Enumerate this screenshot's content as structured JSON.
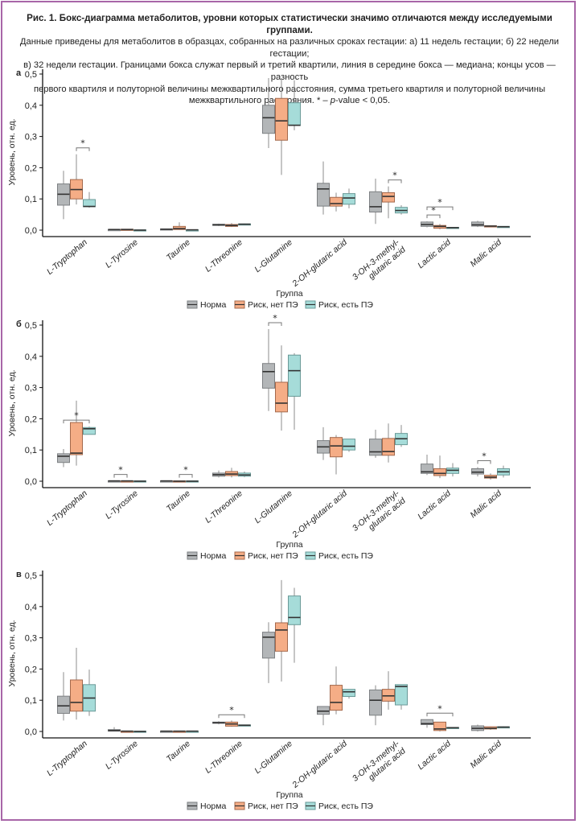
{
  "caption": {
    "title": "Рис. 1. Бокс-диаграмма метаболитов, уровни которых статистически значимо отличаются между исследуемыми группами.",
    "line1": "Данные приведены для метаболитов в образцах, собранных на различных сроках гестации: а) 11 недель гестации; б) 22 недели гестации;",
    "line2": "в) 32 недели гестации. Границами бокса служат первый и третий квартили, линия в середине бокса — медиана; концы усов — разность",
    "line3": "первого квартиля и полуторной величины межквартильного расстояния, сумма третьего квартиля и полуторной величины",
    "line4_pre": "межквартильного расстояния. * – ",
    "line4_italic": "p",
    "line4_post": "-value < 0,05."
  },
  "colors": {
    "Норма": "#b3b6b8",
    "Риск, нет ПЭ": "#f5ad86",
    "Риск, есть ПЭ": "#a6dcd9",
    "frame": "#a866a8"
  },
  "chart_data": [
    {
      "type": "boxplot",
      "panel": "а",
      "ylabel": "Уровень, отн. ед.",
      "xlabel": "Группа",
      "ylim": [
        0,
        0.5
      ],
      "yticks": [
        "0,0",
        "0,1",
        "0,2",
        "0,3",
        "0,4",
        "0,5"
      ],
      "categories": [
        "L-Tryptophan",
        "L-Tyrosine",
        "Taurine",
        "L-Threonine",
        "L-Glutamine",
        "2-OH-glutaric acid",
        "3-OH-3-methyl-\nglutaric acid",
        "Lactic acid",
        "Malic acid"
      ],
      "legend": [
        "Норма",
        "Риск, нет ПЭ",
        "Риск, есть ПЭ"
      ],
      "legend_position": "bottom",
      "series": [
        {
          "name": "Норма",
          "boxes": [
            [
              0.035,
              0.08,
              0.115,
              0.148,
              0.19
            ],
            [
              0.001,
              0.001,
              0.002,
              0.002,
              0.003
            ],
            [
              0.002,
              0.002,
              0.003,
              0.004,
              0.005
            ],
            [
              0.013,
              0.015,
              0.017,
              0.019,
              0.021
            ],
            [
              0.263,
              0.31,
              0.36,
              0.4,
              0.487
            ],
            [
              0.05,
              0.077,
              0.132,
              0.15,
              0.22
            ],
            [
              0.02,
              0.058,
              0.075,
              0.123,
              0.165
            ],
            [
              0.009,
              0.012,
              0.018,
              0.026,
              0.028
            ],
            [
              0.01,
              0.013,
              0.017,
              0.026,
              0.03
            ]
          ]
        },
        {
          "name": "Риск, нет ПЭ",
          "boxes": [
            [
              0.082,
              0.1,
              0.13,
              0.162,
              0.243
            ],
            [
              0.001,
              0.001,
              0.002,
              0.003,
              0.004
            ],
            [
              0.001,
              0.002,
              0.005,
              0.012,
              0.025
            ],
            [
              0.01,
              0.012,
              0.015,
              0.018,
              0.023
            ],
            [
              0.177,
              0.288,
              0.35,
              0.422,
              0.483
            ],
            [
              0.06,
              0.077,
              0.085,
              0.105,
              0.12
            ],
            [
              0.038,
              0.09,
              0.108,
              0.12,
              0.14
            ],
            [
              0.003,
              0.006,
              0.012,
              0.015,
              0.02
            ],
            [
              0.011,
              0.012,
              0.013,
              0.014,
              0.015
            ]
          ]
        },
        {
          "name": "Риск, есть ПЭ",
          "boxes": [
            [
              0.072,
              0.075,
              0.076,
              0.098,
              0.122
            ],
            [
              0.0,
              0.0,
              0.0,
              0.001,
              0.001
            ],
            [
              0.0,
              0.0,
              0.001,
              0.001,
              0.002
            ],
            [
              0.017,
              0.018,
              0.019,
              0.02,
              0.021
            ],
            [
              0.32,
              0.335,
              0.336,
              0.408,
              0.48
            ],
            [
              0.07,
              0.083,
              0.103,
              0.117,
              0.133
            ],
            [
              0.05,
              0.055,
              0.063,
              0.073,
              0.08
            ],
            [
              0.006,
              0.007,
              0.008,
              0.009,
              0.01
            ],
            [
              0.008,
              0.01,
              0.011,
              0.012,
              0.013
            ]
          ]
        }
      ],
      "significance": [
        {
          "category": "L-Tryptophan",
          "groups": [
            "Риск, нет ПЭ",
            "Риск, есть ПЭ"
          ],
          "label": "*"
        },
        {
          "category": "3-OH-3-methyl-glutaric acid",
          "groups": [
            "Риск, нет ПЭ",
            "Риск, есть ПЭ"
          ],
          "label": "*"
        },
        {
          "category": "Lactic acid",
          "groups": [
            "Норма",
            "Риск, нет ПЭ"
          ],
          "label": "*"
        },
        {
          "category": "Lactic acid",
          "groups": [
            "Норма",
            "Риск, есть ПЭ"
          ],
          "label": "*"
        }
      ]
    },
    {
      "type": "boxplot",
      "panel": "б",
      "ylabel": "Уровень, отн. ед.",
      "xlabel": "Группа",
      "ylim": [
        0,
        0.5
      ],
      "yticks": [
        "0,0",
        "0,1",
        "0,2",
        "0,3",
        "0,4",
        "0,5"
      ],
      "categories": [
        "L-Tryptophan",
        "L-Tyrosine",
        "Taurine",
        "L-Threonine",
        "L-Glutamine",
        "2-OH-glutaric acid",
        "3-OH-3-methyl-\nglutaric acid",
        "Lactic acid",
        "Malic acid"
      ],
      "legend": [
        "Норма",
        "Риск, нет ПЭ",
        "Риск, есть ПЭ"
      ],
      "legend_position": "bottom",
      "series": [
        {
          "name": "Норма",
          "boxes": [
            [
              0.045,
              0.06,
              0.08,
              0.088,
              0.103
            ],
            [
              0.0,
              0.0,
              0.001,
              0.001,
              0.001
            ],
            [
              0.0,
              0.0,
              0.001,
              0.001,
              0.001
            ],
            [
              0.012,
              0.016,
              0.021,
              0.026,
              0.034
            ],
            [
              0.225,
              0.298,
              0.351,
              0.377,
              0.487
            ],
            [
              0.068,
              0.09,
              0.11,
              0.13,
              0.173
            ],
            [
              0.075,
              0.083,
              0.094,
              0.135,
              0.165
            ],
            [
              0.02,
              0.025,
              0.03,
              0.055,
              0.085
            ],
            [
              0.015,
              0.023,
              0.029,
              0.04,
              0.045
            ]
          ]
        },
        {
          "name": "Риск, нет ПЭ",
          "boxes": [
            [
              0.05,
              0.085,
              0.09,
              0.188,
              0.258
            ],
            [
              0.0,
              0.0,
              0.001,
              0.001,
              0.001
            ],
            [
              0.0,
              0.0,
              0.0,
              0.001,
              0.001
            ],
            [
              0.012,
              0.018,
              0.023,
              0.031,
              0.043
            ],
            [
              0.162,
              0.222,
              0.25,
              0.317,
              0.435
            ],
            [
              0.022,
              0.078,
              0.113,
              0.14,
              0.148
            ],
            [
              0.06,
              0.083,
              0.095,
              0.137,
              0.185
            ],
            [
              0.01,
              0.018,
              0.025,
              0.04,
              0.082
            ],
            [
              0.005,
              0.01,
              0.013,
              0.019,
              0.025
            ]
          ]
        },
        {
          "name": "Риск, есть ПЭ",
          "boxes": [
            [
              0.15,
              0.15,
              0.168,
              0.172,
              0.175
            ],
            [
              0.0,
              0.0,
              0.0,
              0.001,
              0.001
            ],
            [
              0.0,
              0.0,
              0.0,
              0.001,
              0.001
            ],
            [
              0.013,
              0.016,
              0.02,
              0.026,
              0.031
            ],
            [
              0.165,
              0.272,
              0.354,
              0.404,
              0.41
            ],
            [
              0.094,
              0.1,
              0.112,
              0.135,
              0.135
            ],
            [
              0.11,
              0.117,
              0.136,
              0.153,
              0.18
            ],
            [
              0.015,
              0.025,
              0.035,
              0.042,
              0.058
            ],
            [
              0.012,
              0.02,
              0.03,
              0.04,
              0.05
            ]
          ]
        }
      ],
      "significance": [
        {
          "category": "L-Tryptophan",
          "groups": [
            "Норма",
            "Риск, есть ПЭ"
          ],
          "label": "*"
        },
        {
          "category": "L-Tyrosine",
          "groups": [
            "Норма",
            "Риск, нет ПЭ"
          ],
          "label": "*"
        },
        {
          "category": "Taurine",
          "groups": [
            "Риск, нет ПЭ",
            "Риск, есть ПЭ"
          ],
          "label": "*"
        },
        {
          "category": "L-Glutamine",
          "groups": [
            "Норма",
            "Риск, нет ПЭ"
          ],
          "label": "*"
        },
        {
          "category": "Malic acid",
          "groups": [
            "Норма",
            "Риск, нет ПЭ"
          ],
          "label": "*"
        }
      ]
    },
    {
      "type": "boxplot",
      "panel": "в",
      "ylabel": "Уровень, отн. ед.",
      "xlabel": "Группа",
      "ylim": [
        0,
        0.5
      ],
      "yticks": [
        "0,0",
        "0,1",
        "0,2",
        "0,3",
        "0,4",
        "0,5"
      ],
      "categories": [
        "L-Tryptophan",
        "L-Tyrosine",
        "Taurine",
        "L-Threonine",
        "L-Glutamine",
        "2-OH-glutaric acid",
        "3-OH-3-methyl-\nglutaric acid",
        "Lactic acid",
        "Malic acid"
      ],
      "legend": [
        "Норма",
        "Риск, нет ПЭ",
        "Риск, есть ПЭ"
      ],
      "legend_position": "bottom",
      "series": [
        {
          "name": "Норма",
          "boxes": [
            [
              0.035,
              0.058,
              0.082,
              0.113,
              0.19
            ],
            [
              0.0,
              0.001,
              0.003,
              0.006,
              0.014
            ],
            [
              0.0,
              0.0,
              0.001,
              0.001,
              0.001
            ],
            [
              0.023,
              0.026,
              0.028,
              0.03,
              0.033
            ],
            [
              0.155,
              0.235,
              0.302,
              0.318,
              0.35
            ],
            [
              0.02,
              0.055,
              0.065,
              0.08,
              0.08
            ],
            [
              0.02,
              0.052,
              0.1,
              0.133,
              0.148
            ],
            [
              0.012,
              0.022,
              0.025,
              0.038,
              0.038
            ],
            [
              0.0,
              0.003,
              0.01,
              0.018,
              0.022
            ]
          ]
        },
        {
          "name": "Риск, нет ПЭ",
          "boxes": [
            [
              0.038,
              0.065,
              0.093,
              0.165,
              0.268
            ],
            [
              0.0,
              0.0,
              0.001,
              0.001,
              0.001
            ],
            [
              0.0,
              0.0,
              0.001,
              0.001,
              0.001
            ],
            [
              0.015,
              0.017,
              0.024,
              0.03,
              0.035
            ],
            [
              0.16,
              0.257,
              0.325,
              0.348,
              0.485
            ],
            [
              0.055,
              0.068,
              0.093,
              0.148,
              0.208
            ],
            [
              0.07,
              0.097,
              0.114,
              0.135,
              0.193
            ],
            [
              0.0,
              0.003,
              0.008,
              0.03,
              0.03
            ],
            [
              0.005,
              0.008,
              0.01,
              0.015,
              0.016
            ]
          ]
        },
        {
          "name": "Риск, есть ПЭ",
          "boxes": [
            [
              0.05,
              0.065,
              0.107,
              0.15,
              0.198
            ],
            [
              0.0,
              0.0,
              0.0,
              0.001,
              0.001
            ],
            [
              0.0,
              0.0,
              0.001,
              0.001,
              0.001
            ],
            [
              0.018,
              0.019,
              0.02,
              0.021,
              0.022
            ],
            [
              0.22,
              0.342,
              0.365,
              0.434,
              0.46
            ],
            [
              0.105,
              0.112,
              0.127,
              0.135,
              0.135
            ],
            [
              0.07,
              0.085,
              0.144,
              0.15,
              0.15
            ],
            [
              0.009,
              0.01,
              0.012,
              0.013,
              0.013
            ],
            [
              0.012,
              0.013,
              0.014,
              0.015,
              0.016
            ]
          ]
        }
      ],
      "significance": [
        {
          "category": "L-Threonine",
          "groups": [
            "Норма",
            "Риск, есть ПЭ"
          ],
          "label": "*"
        },
        {
          "category": "Lactic acid",
          "groups": [
            "Норма",
            "Риск, есть ПЭ"
          ],
          "label": "*"
        }
      ]
    }
  ]
}
